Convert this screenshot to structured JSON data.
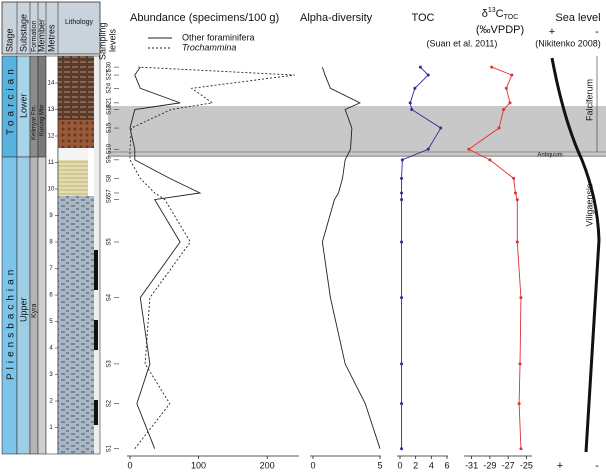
{
  "column": {
    "headers": {
      "stage": "Stage",
      "substage": "Substage",
      "formation": "Formation",
      "member": "Member",
      "metres": "Metres",
      "lithology": "Lithology"
    },
    "stages": [
      "Toarcian",
      "Pliensbachian"
    ],
    "substages": [
      "Lower",
      "Upper"
    ],
    "formations": [
      "Kelimyar Fm.",
      "Kyra"
    ],
    "member": "Kurung Mbr",
    "ylim": [
      0,
      15
    ],
    "metres_ticks": [
      1,
      2,
      3,
      4,
      5,
      6,
      7,
      8,
      9,
      10,
      11,
      12,
      13,
      14
    ]
  },
  "samples": {
    "header": [
      "Sampling",
      "levels"
    ],
    "labels": [
      "S1",
      "S2",
      "S3",
      "S4",
      "S5",
      "S6",
      "S7",
      "S8",
      "S9",
      "S10",
      "S15",
      "S18",
      "S21",
      "S24",
      "S27",
      "S30"
    ],
    "metres": [
      0.2,
      1.9,
      3.4,
      5.9,
      8.0,
      9.6,
      9.85,
      10.4,
      11.1,
      11.5,
      12.3,
      13.0,
      13.25,
      13.8,
      14.3,
      14.6
    ]
  },
  "chart_data": [
    {
      "type": "line",
      "title": "Abundance (specimens/100 g)",
      "xlim": [
        0,
        245
      ],
      "xticks": [
        0,
        100,
        200
      ],
      "series": [
        {
          "name": "Other foraminifera",
          "color": "#222222",
          "dashed": false,
          "values": [
            36,
            10,
            29,
            15,
            73,
            36,
            102,
            58,
            7,
            7,
            0,
            7,
            73,
            15,
            7,
            15
          ]
        },
        {
          "name": "Trochammina",
          "color": "#222222",
          "dashed": true,
          "values": [
            7,
            58,
            22,
            29,
            88,
            51,
            36,
            15,
            0,
            0,
            2,
            60,
            120,
            90,
            240,
            12
          ]
        }
      ]
    },
    {
      "type": "line",
      "title": "Alpha-diversity",
      "xlim": [
        0,
        5
      ],
      "xticks": [
        0,
        5
      ],
      "series": [
        {
          "color": "#222222",
          "dashed": false,
          "values": [
            5.0,
            3.9,
            2.4,
            1.3,
            0.7,
            1.6,
            1.9,
            2.2,
            2.4,
            2.8,
            2.9,
            2.4,
            3.5,
            1.3,
            0.9,
            0.7
          ]
        }
      ]
    },
    {
      "type": "line",
      "title": "TOC",
      "xlim": [
        0,
        6
      ],
      "xticks": [
        0,
        2,
        4,
        6
      ],
      "markers": true,
      "series": [
        {
          "color": "#2b2b9a",
          "dashed": false,
          "values": [
            0.2,
            0.2,
            0.2,
            0.2,
            0.2,
            0.2,
            0.2,
            0.2,
            0.3,
            3.6,
            5.2,
            1.5,
            1.3,
            1.9,
            3.6,
            2.6
          ]
        }
      ]
    },
    {
      "type": "line",
      "title_symbol": "δ",
      "title_sup": "13",
      "title_main": "C",
      "title_sub": "TOC",
      "title_unit": "(‰VPDP)",
      "subtitle": "(Suan et al. 2011)",
      "xlim": [
        -31.5,
        -24.5
      ],
      "xticks": [
        -31,
        -29,
        -27,
        -25
      ],
      "markers": true,
      "series": [
        {
          "color": "#e03030",
          "dashed": false,
          "values": [
            -25.6,
            -25.8,
            -25.7,
            -25.6,
            -26.0,
            -26.0,
            -26.2,
            -26.4,
            -29.0,
            -31.3,
            -28.0,
            -27.5,
            -26.8,
            -27.2,
            -26.6,
            -28.8
          ]
        }
      ]
    }
  ],
  "sea_level": {
    "title": "Sea level",
    "source": "(Nikitenko 2008)",
    "plus": "+",
    "minus": "-",
    "zones": [
      "Falciferum",
      "Antiquum",
      "Viligaensis"
    ]
  }
}
